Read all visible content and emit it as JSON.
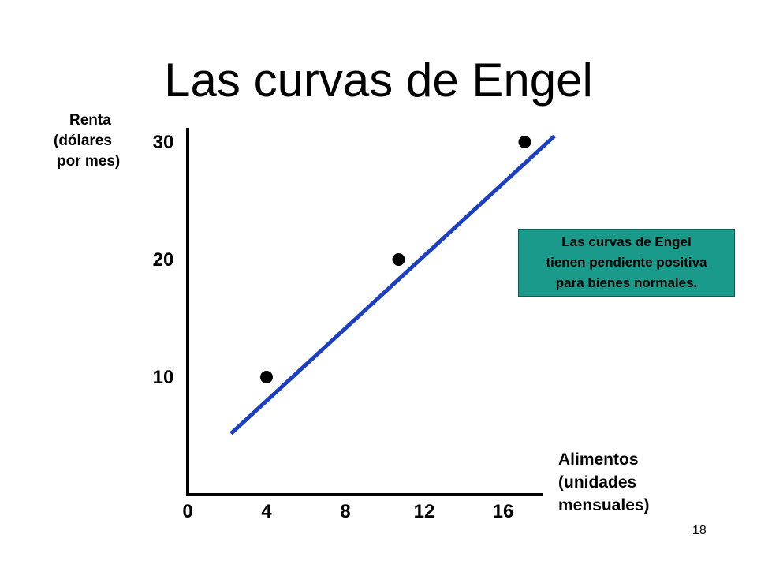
{
  "slide": {
    "title": "Las curvas de Engel",
    "page_number": "18",
    "callout": {
      "lines": [
        "Las curvas de Engel",
        "tienen pendiente positiva",
        "para bienes normales."
      ],
      "background": "#1a9a8a"
    }
  },
  "chart_data": {
    "type": "line",
    "title": "Las curvas de Engel",
    "ylabel_lines": [
      "Renta",
      "(dólares",
      "por mes)"
    ],
    "xlabel_lines": [
      "Alimentos",
      "(unidades",
      "mensuales)"
    ],
    "x_ticks": [
      "0",
      "4",
      "8",
      "12",
      "16"
    ],
    "x_tick_values": [
      0,
      4,
      8,
      12,
      16
    ],
    "y_ticks": [
      "10",
      "20",
      "30"
    ],
    "y_tick_values": [
      10,
      20,
      30
    ],
    "xlim": [
      0,
      16.5
    ],
    "ylim": [
      0,
      33
    ],
    "grid": false,
    "series": [
      {
        "color": "#1b3fc0",
        "line": [
          {
            "x": 2.2,
            "y": 5.2
          },
          {
            "x": 18.6,
            "y": 30.5
          }
        ],
        "points": [
          {
            "x": 4,
            "y": 10
          },
          {
            "x": 10.7,
            "y": 20
          },
          {
            "x": 17.1,
            "y": 30
          }
        ]
      }
    ]
  }
}
